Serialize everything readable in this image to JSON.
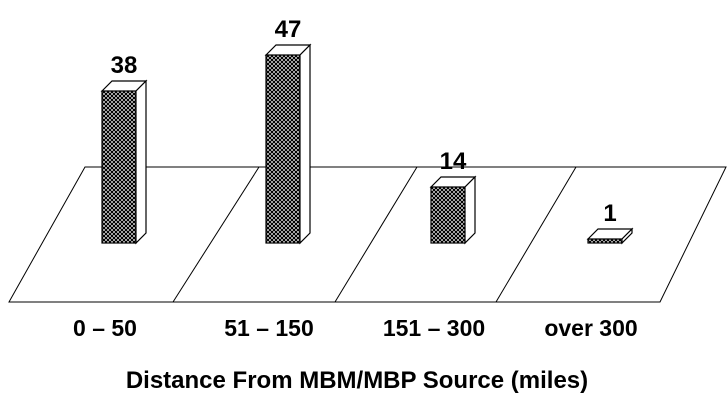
{
  "chart_data": {
    "type": "bar",
    "categories": [
      "0 – 50",
      "51 – 150",
      "151 – 300",
      "over 300"
    ],
    "values": [
      38,
      47,
      14,
      1
    ],
    "title": "",
    "xlabel": "Distance From MBM/MBP Source (miles)",
    "ylabel": "",
    "ylim": [
      0,
      50
    ],
    "grid": false,
    "legend": "none",
    "style": "3d-bars-on-perspective-floor",
    "colors": {
      "bar_fill": "crosshatch-gray",
      "outline": "#000000",
      "background": "#ffffff"
    }
  }
}
